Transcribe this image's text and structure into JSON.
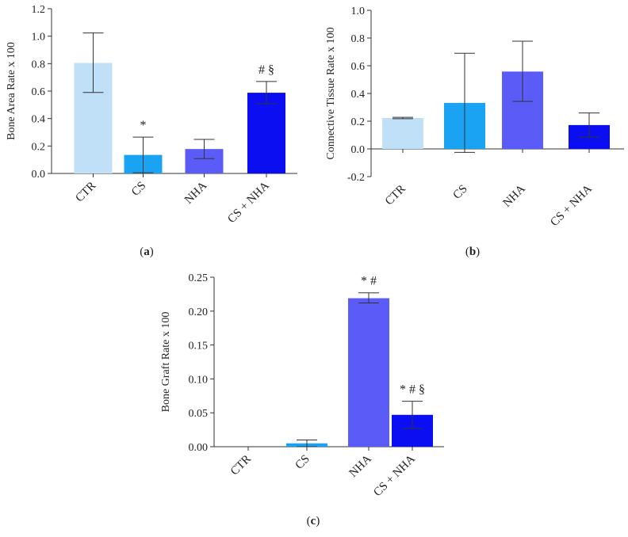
{
  "chart_data": [
    {
      "type": "bar",
      "panel": "(a)",
      "ylabel": "Bone Area Rate x 100",
      "xlabel": "",
      "ylim": [
        0,
        1.2
      ],
      "yticks": [
        "0.0",
        "0.2",
        "0.4",
        "0.6",
        "0.8",
        "1.0",
        "1.2"
      ],
      "yticks_values": [
        0,
        0.2,
        0.4,
        0.6,
        0.8,
        1.0,
        1.2
      ],
      "categories": [
        "CTR",
        "CS",
        "NHA",
        "CS + NHA"
      ],
      "values": [
        0.805,
        0.135,
        0.178,
        0.588
      ],
      "error_low": [
        0.59,
        0.005,
        0.108,
        0.507
      ],
      "error_high": [
        1.023,
        0.265,
        0.248,
        0.67
      ],
      "annotations": [
        "",
        "*",
        "",
        "# §"
      ],
      "colors": [
        "#bfe0f7",
        "#1aa3f2",
        "#5b5cf7",
        "#0b0ef0"
      ]
    },
    {
      "type": "bar",
      "panel": "(b)",
      "ylabel": "Connective Tissue Rate x 100",
      "xlabel": "",
      "ylim": [
        -0.2,
        1.0
      ],
      "yticks": [
        "-0.2",
        "0.0",
        "0.2",
        "0.4",
        "0.6",
        "0.8",
        "1.0"
      ],
      "yticks_values": [
        -0.2,
        0,
        0.2,
        0.4,
        0.6,
        0.8,
        1.0
      ],
      "categories": [
        "CTR",
        "CS",
        "NHA",
        "CS + NHA"
      ],
      "values": [
        0.223,
        0.332,
        0.558,
        0.172
      ],
      "error_low": [
        0.218,
        -0.025,
        0.343,
        0.085
      ],
      "error_high": [
        0.228,
        0.69,
        0.777,
        0.259
      ],
      "annotations": [
        "",
        "",
        "",
        ""
      ],
      "colors": [
        "#bfe0f7",
        "#1aa3f2",
        "#5b5cf7",
        "#0b0ef0"
      ]
    },
    {
      "type": "bar",
      "panel": "(c)",
      "ylabel": "Bone Graft Rate x 100",
      "xlabel": "",
      "ylim": [
        0,
        0.25
      ],
      "yticks": [
        "0.00",
        "0.05",
        "0.10",
        "0.15",
        "0.20",
        "0.25"
      ],
      "yticks_values": [
        0,
        0.05,
        0.1,
        0.15,
        0.2,
        0.25
      ],
      "categories": [
        "CTR",
        "CS",
        "NHA",
        "CS + NHA"
      ],
      "values": [
        0.0,
        0.005,
        0.219,
        0.047
      ],
      "error_low": [
        null,
        0.0,
        0.212,
        0.027
      ],
      "error_high": [
        null,
        0.01,
        0.227,
        0.067
      ],
      "annotations": [
        "",
        "",
        "* #",
        "* # §"
      ],
      "colors": [
        "#bfe0f7",
        "#1aa3f2",
        "#5b5cf7",
        "#0b0ef0"
      ]
    }
  ]
}
